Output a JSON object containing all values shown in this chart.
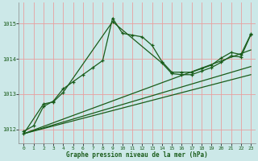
{
  "title": "Graphe pression niveau de la mer (hPa)",
  "background_color": "#cce8e8",
  "grid_color": "#e8a0a0",
  "line_color": "#1a5c1a",
  "xlim": [
    -0.5,
    23.5
  ],
  "ylim": [
    1011.6,
    1015.6
  ],
  "yticks": [
    1012,
    1013,
    1014,
    1015
  ],
  "xticks": [
    0,
    1,
    2,
    3,
    4,
    5,
    6,
    7,
    8,
    9,
    10,
    11,
    12,
    13,
    14,
    15,
    16,
    17,
    18,
    19,
    20,
    21,
    22,
    23
  ],
  "series1_x": [
    0,
    1,
    2,
    3,
    4,
    5,
    6,
    7,
    8,
    9,
    10,
    11,
    12,
    13,
    14,
    15,
    16,
    17,
    18,
    19,
    20,
    21,
    22,
    23
  ],
  "series1_y": [
    1011.95,
    1012.1,
    1012.65,
    1012.8,
    1013.15,
    1013.35,
    1013.55,
    1013.75,
    1013.95,
    1015.15,
    1014.72,
    1014.67,
    1014.62,
    1014.38,
    1013.92,
    1013.62,
    1013.62,
    1013.62,
    1013.72,
    1013.82,
    1014.02,
    1014.18,
    1014.12,
    1014.7
  ],
  "series2_x": [
    0,
    2,
    3,
    4,
    9,
    14,
    15,
    16,
    17,
    18,
    19,
    20,
    21,
    22,
    23
  ],
  "series2_y": [
    1011.88,
    1012.72,
    1012.78,
    1013.05,
    1015.05,
    1013.88,
    1013.58,
    1013.55,
    1013.55,
    1013.65,
    1013.75,
    1013.9,
    1014.08,
    1014.05,
    1014.68
  ],
  "line3_x": [
    0,
    23
  ],
  "line3_y": [
    1011.88,
    1014.25
  ],
  "line4_x": [
    0,
    23
  ],
  "line4_y": [
    1011.88,
    1013.78
  ],
  "line5_x": [
    0,
    23
  ],
  "line5_y": [
    1011.88,
    1013.55
  ]
}
